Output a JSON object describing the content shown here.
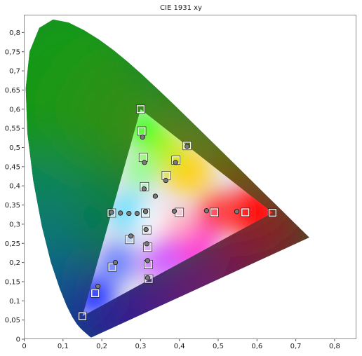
{
  "chart_data": {
    "type": "scatter",
    "title": "CIE 1931 xy",
    "xlabel": "",
    "ylabel": "",
    "xlim": [
      0,
      0.85
    ],
    "ylim": [
      0,
      0.85
    ],
    "x_ticks": [
      "0",
      "0,1",
      "0,2",
      "0,3",
      "0,4",
      "0,5",
      "0,6",
      "0,7",
      "0,8"
    ],
    "y_ticks": [
      "0",
      "0,05",
      "0,1",
      "0,15",
      "0,2",
      "0,25",
      "0,3",
      "0,35",
      "0,4",
      "0,45",
      "0,5",
      "0,55",
      "0,6",
      "0,65",
      "0,7",
      "0,75",
      "0,8"
    ],
    "grid": false,
    "legend": "none",
    "gamut_triangle": {
      "red": {
        "x": 0.64,
        "y": 0.33
      },
      "green": {
        "x": 0.3,
        "y": 0.6
      },
      "blue": {
        "x": 0.15,
        "y": 0.06
      }
    },
    "series": [
      {
        "marker": "square",
        "points": [
          {
            "x": 0.3127,
            "y": 0.329
          },
          {
            "x": 0.64,
            "y": 0.33
          },
          {
            "x": 0.57,
            "y": 0.331
          },
          {
            "x": 0.49,
            "y": 0.331
          },
          {
            "x": 0.4,
            "y": 0.331
          },
          {
            "x": 0.3,
            "y": 0.6
          },
          {
            "x": 0.303,
            "y": 0.543
          },
          {
            "x": 0.307,
            "y": 0.474
          },
          {
            "x": 0.31,
            "y": 0.398
          },
          {
            "x": 0.15,
            "y": 0.06
          },
          {
            "x": 0.183,
            "y": 0.12
          },
          {
            "x": 0.227,
            "y": 0.188
          },
          {
            "x": 0.272,
            "y": 0.26
          },
          {
            "x": 0.42,
            "y": 0.505
          },
          {
            "x": 0.391,
            "y": 0.467
          },
          {
            "x": 0.366,
            "y": 0.427
          },
          {
            "x": 0.225,
            "y": 0.329
          },
          {
            "x": 0.316,
            "y": 0.285
          },
          {
            "x": 0.318,
            "y": 0.24
          },
          {
            "x": 0.32,
            "y": 0.195
          },
          {
            "x": 0.321,
            "y": 0.157
          }
        ]
      },
      {
        "marker": "circle",
        "points": [
          {
            "x": 0.313,
            "y": 0.333
          },
          {
            "x": 0.548,
            "y": 0.333
          },
          {
            "x": 0.47,
            "y": 0.335
          },
          {
            "x": 0.387,
            "y": 0.334
          },
          {
            "x": 0.305,
            "y": 0.527
          },
          {
            "x": 0.31,
            "y": 0.461
          },
          {
            "x": 0.309,
            "y": 0.392
          },
          {
            "x": 0.19,
            "y": 0.138
          },
          {
            "x": 0.235,
            "y": 0.2
          },
          {
            "x": 0.275,
            "y": 0.269
          },
          {
            "x": 0.42,
            "y": 0.503
          },
          {
            "x": 0.39,
            "y": 0.461
          },
          {
            "x": 0.365,
            "y": 0.414
          },
          {
            "x": 0.338,
            "y": 0.373
          },
          {
            "x": 0.225,
            "y": 0.331
          },
          {
            "x": 0.248,
            "y": 0.329
          },
          {
            "x": 0.27,
            "y": 0.328
          },
          {
            "x": 0.291,
            "y": 0.328
          },
          {
            "x": 0.314,
            "y": 0.286
          },
          {
            "x": 0.316,
            "y": 0.249
          },
          {
            "x": 0.318,
            "y": 0.205
          },
          {
            "x": 0.318,
            "y": 0.16
          }
        ]
      }
    ]
  }
}
